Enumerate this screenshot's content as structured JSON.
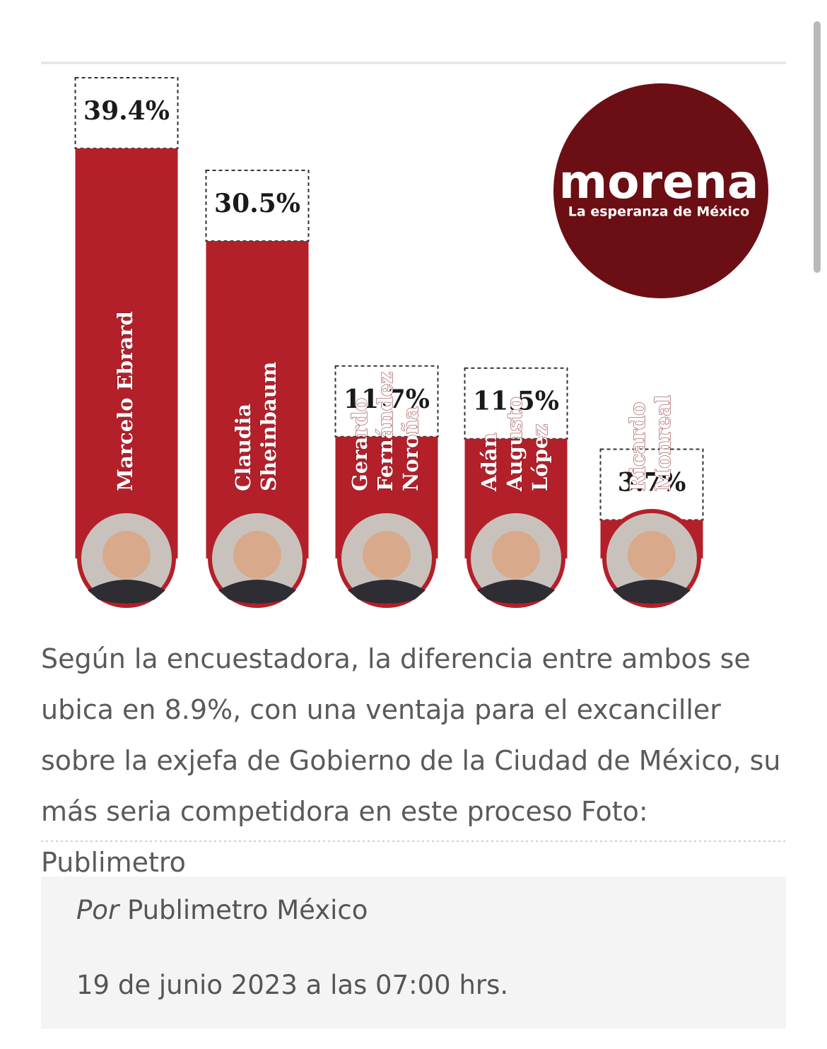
{
  "chart_data": {
    "type": "bar",
    "categories": [
      [
        "Marcelo Ebrard"
      ],
      [
        "Claudia",
        "Sheinbaum"
      ],
      [
        "Gerardo",
        "Fernández",
        "Noroña"
      ],
      [
        "Adán",
        "Augusto",
        "López"
      ],
      [
        "Ricardo",
        "Monreal"
      ]
    ],
    "values": [
      39.4,
      30.5,
      11.7,
      11.5,
      3.7
    ],
    "value_labels": [
      "39.4%",
      "30.5%",
      "11.7%",
      "11.5%",
      "3.7%"
    ],
    "color": "#b3202a"
  },
  "logo": {
    "name": "morena",
    "tagline": "La esperanza de México"
  },
  "caption": "Según la encuestadora, la diferencia entre ambos se ubica en 8.9%, con una ventaja para el excanciller sobre la exjefa de Gobierno de la Ciudad de México,  su más seria competidora en este proceso Foto: Publimetro",
  "byline": {
    "prefix": "Por",
    "author": "Publimetro México",
    "date": "19 de junio 2023 a las 07:00 hrs."
  }
}
